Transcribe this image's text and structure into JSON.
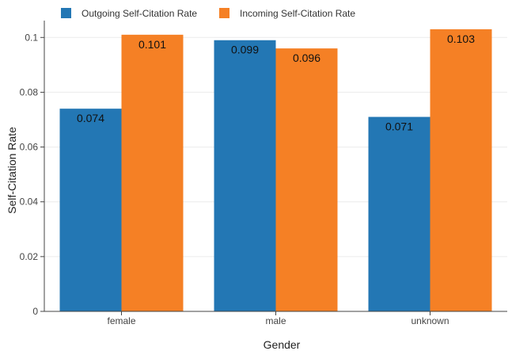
{
  "chart_data": {
    "type": "bar",
    "categories": [
      "female",
      "male",
      "unknown"
    ],
    "series": [
      {
        "name": "Outgoing Self-Citation Rate",
        "values": [
          0.074,
          0.099,
          0.071
        ],
        "labels": [
          "0.074",
          "0.099",
          "0.071"
        ],
        "color": "#2377b4"
      },
      {
        "name": "Incoming Self-Citation Rate",
        "values": [
          0.101,
          0.096,
          0.103
        ],
        "labels": [
          "0.101",
          "0.096",
          "0.103"
        ],
        "color": "#f58025"
      }
    ],
    "xlabel": "Gender",
    "ylabel": "Self-Citation Rate",
    "ylim": [
      0,
      0.105
    ],
    "yticks": [
      0,
      0.02,
      0.04,
      0.06,
      0.08,
      0.1
    ],
    "ytick_labels": [
      "0",
      "0.02",
      "0.04",
      "0.06",
      "0.08",
      "0.1"
    ],
    "grid": true,
    "legend_position": "top-left"
  }
}
